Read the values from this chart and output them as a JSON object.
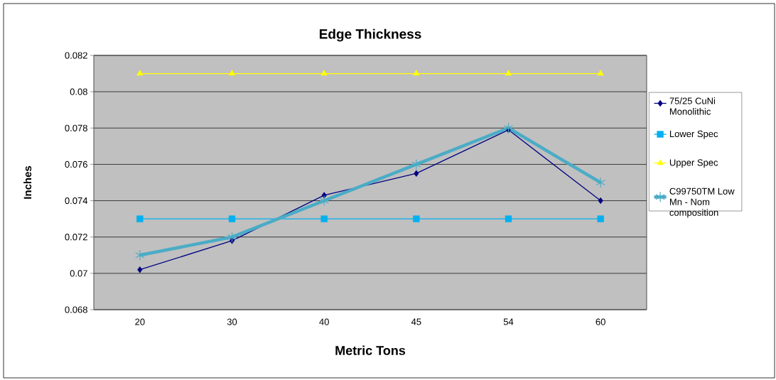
{
  "chart_data": {
    "type": "line",
    "title": "Edge Thickness",
    "xlabel": "Metric Tons",
    "ylabel": "Inches",
    "categories": [
      "20",
      "30",
      "40",
      "45",
      "54",
      "60"
    ],
    "series": [
      {
        "name": "75/25 CuNi Monolithic",
        "color": "#000080",
        "marker": "diamond",
        "values": [
          0.0702,
          0.0718,
          0.0743,
          0.0755,
          0.0779,
          0.074
        ]
      },
      {
        "name": "Lower Spec",
        "color": "#00b0f0",
        "marker": "square",
        "values": [
          0.073,
          0.073,
          0.073,
          0.073,
          0.073,
          0.073
        ]
      },
      {
        "name": "Upper Spec",
        "color": "#ffff00",
        "marker": "triangle",
        "values": [
          0.081,
          0.081,
          0.081,
          0.081,
          0.081,
          0.081
        ]
      },
      {
        "name": "C99750TM Low Mn - Nom composition",
        "color": "#4bacc6",
        "marker": "cross",
        "values": [
          0.071,
          0.072,
          0.074,
          0.076,
          0.078,
          0.075
        ]
      }
    ],
    "ylim": [
      0.068,
      0.082
    ],
    "yticks": [
      0.068,
      0.07,
      0.072,
      0.074,
      0.076,
      0.078,
      0.08,
      0.082
    ],
    "grid": "y",
    "legend": "right"
  }
}
